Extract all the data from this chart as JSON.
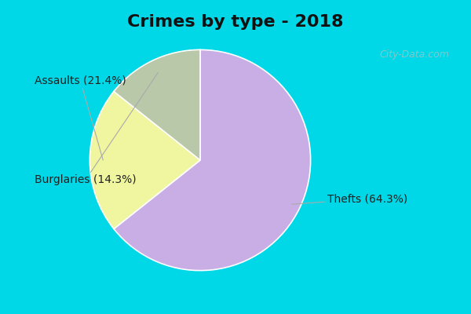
{
  "title": "Crimes by type - 2018",
  "slices": [
    {
      "label": "Thefts (64.3%)",
      "value": 64.3,
      "color": "#c9aee5"
    },
    {
      "label": "Assaults (21.4%)",
      "value": 21.4,
      "color": "#f0f5a0"
    },
    {
      "label": "Burglaries (14.3%)",
      "value": 14.3,
      "color": "#b8c8a8"
    }
  ],
  "bg_outer": "#00d8e8",
  "bg_inner_left": "#c8e8d8",
  "bg_inner_right": "#ddeee8",
  "watermark": "City-Data.com",
  "title_fontsize": 16,
  "label_fontsize": 10,
  "startangle": 90,
  "border_width": 10
}
